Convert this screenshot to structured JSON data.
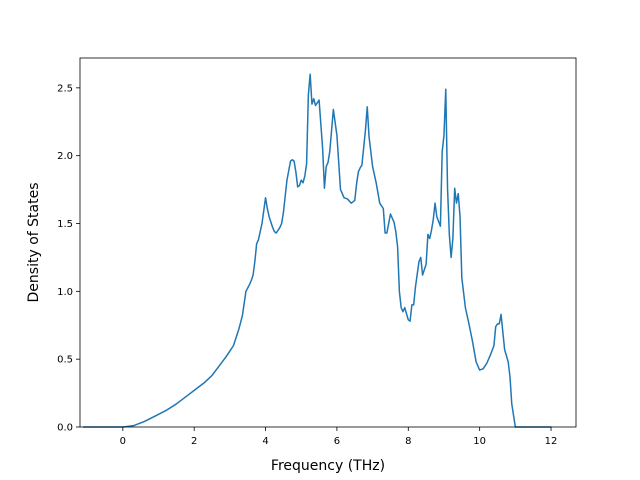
{
  "chart_data": {
    "type": "line",
    "title": "",
    "xlabel": "Frequency (THz)",
    "ylabel": "Density of States",
    "xlim": [
      -1.2,
      12.7
    ],
    "ylim": [
      0.0,
      2.72
    ],
    "xticks": [
      0,
      2,
      4,
      6,
      8,
      10,
      12
    ],
    "yticks": [
      0.0,
      0.5,
      1.0,
      1.5,
      2.0,
      2.5
    ],
    "xtick_labels": [
      "0",
      "2",
      "4",
      "6",
      "8",
      "10",
      "12"
    ],
    "ytick_labels": [
      "0.0",
      "0.5",
      "1.0",
      "1.5",
      "2.0",
      "2.5"
    ],
    "grid": false,
    "line_color": "#1f77b4",
    "series": [
      {
        "x": [
          -1.1,
          -0.5,
          0.0,
          0.3,
          0.6,
          0.9,
          1.2,
          1.5,
          1.8,
          2.0,
          2.3,
          2.5,
          2.7,
          2.9,
          3.0,
          3.1,
          3.2,
          3.25,
          3.35,
          3.45,
          3.55,
          3.6,
          3.65,
          3.7,
          3.75,
          3.8,
          3.9,
          4.0,
          4.05,
          4.1,
          4.2,
          4.25,
          4.3,
          4.4,
          4.45,
          4.5,
          4.6,
          4.7,
          4.75,
          4.8,
          4.85,
          4.9,
          4.95,
          5.0,
          5.05,
          5.1,
          5.15,
          5.2,
          5.25,
          5.3,
          5.35,
          5.4,
          5.5,
          5.6,
          5.65,
          5.7,
          5.75,
          5.8,
          5.9,
          6.0,
          6.1,
          6.2,
          6.3,
          6.4,
          6.5,
          6.55,
          6.6,
          6.65,
          6.7,
          6.8,
          6.85,
          6.9,
          7.0,
          7.1,
          7.2,
          7.3,
          7.35,
          7.4,
          7.5,
          7.6,
          7.65,
          7.7,
          7.75,
          7.8,
          7.85,
          7.9,
          8.0,
          8.05,
          8.1,
          8.15,
          8.2,
          8.3,
          8.35,
          8.4,
          8.5,
          8.55,
          8.6,
          8.65,
          8.7,
          8.75,
          8.8,
          8.9,
          8.95,
          9.0,
          9.05,
          9.1,
          9.15,
          9.2,
          9.25,
          9.3,
          9.35,
          9.4,
          9.45,
          9.5,
          9.6,
          9.7,
          9.8,
          9.9,
          10.0,
          10.1,
          10.2,
          10.3,
          10.4,
          10.45,
          10.5,
          10.55,
          10.6,
          10.7,
          10.8,
          10.85,
          10.9,
          11.0,
          11.5,
          12.0
        ],
        "y": [
          0.0,
          0.0,
          0.0,
          0.01,
          0.04,
          0.08,
          0.12,
          0.17,
          0.23,
          0.27,
          0.33,
          0.38,
          0.45,
          0.52,
          0.56,
          0.6,
          0.68,
          0.72,
          0.82,
          1.0,
          1.05,
          1.08,
          1.12,
          1.22,
          1.35,
          1.38,
          1.5,
          1.69,
          1.61,
          1.55,
          1.47,
          1.44,
          1.43,
          1.47,
          1.5,
          1.58,
          1.82,
          1.96,
          1.97,
          1.96,
          1.88,
          1.77,
          1.78,
          1.82,
          1.8,
          1.85,
          1.94,
          2.45,
          2.6,
          2.38,
          2.42,
          2.37,
          2.41,
          2.05,
          1.76,
          1.92,
          1.95,
          2.03,
          2.34,
          2.15,
          1.75,
          1.69,
          1.68,
          1.65,
          1.67,
          1.79,
          1.88,
          1.91,
          1.93,
          2.19,
          2.36,
          2.14,
          1.92,
          1.8,
          1.65,
          1.61,
          1.43,
          1.43,
          1.57,
          1.51,
          1.44,
          1.33,
          1.0,
          0.88,
          0.85,
          0.88,
          0.79,
          0.78,
          0.9,
          0.9,
          1.03,
          1.22,
          1.25,
          1.12,
          1.2,
          1.42,
          1.39,
          1.45,
          1.53,
          1.65,
          1.55,
          1.48,
          2.03,
          2.15,
          2.49,
          1.76,
          1.42,
          1.25,
          1.39,
          1.76,
          1.65,
          1.72,
          1.55,
          1.1,
          0.88,
          0.76,
          0.63,
          0.48,
          0.42,
          0.43,
          0.47,
          0.53,
          0.6,
          0.74,
          0.76,
          0.76,
          0.83,
          0.57,
          0.48,
          0.37,
          0.17,
          0.0,
          0.0,
          0.0
        ]
      }
    ]
  }
}
